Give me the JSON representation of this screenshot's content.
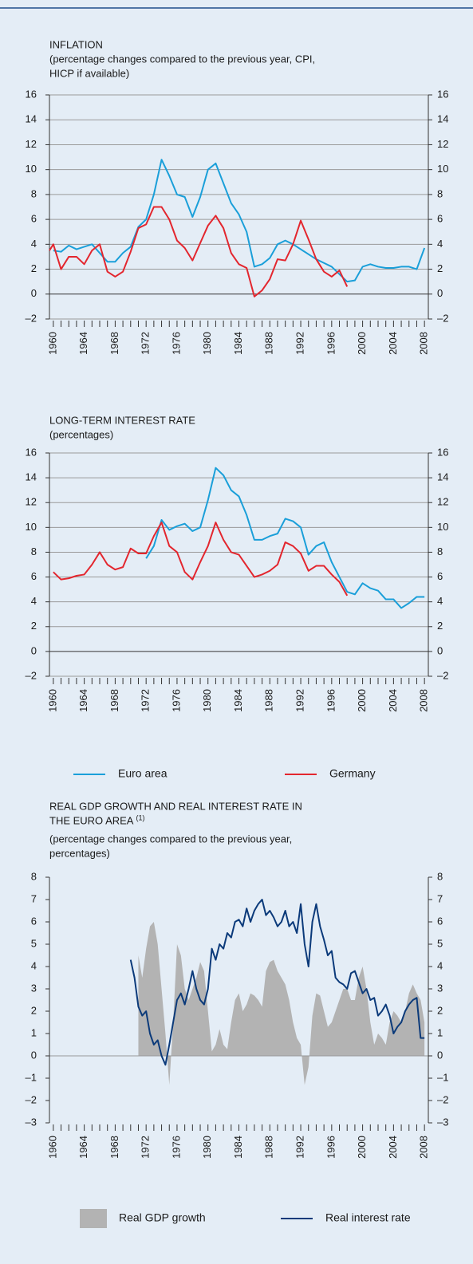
{
  "chart_data": [
    {
      "type": "line",
      "title": [
        "INFLATION"
      ],
      "subtitle": [
        "(percentage changes compared to the previous year, CPI,",
        "HICP if available)"
      ],
      "xlim": [
        1959.5,
        2008.5
      ],
      "xticks": [
        1960,
        1964,
        1968,
        1972,
        1976,
        1980,
        1984,
        1988,
        1992,
        1996,
        2000,
        2004,
        2008
      ],
      "xminorticks": [
        1960,
        1961,
        1962,
        1963,
        1964,
        1965,
        1966,
        1967,
        1968,
        1969,
        1970,
        1971,
        1972,
        1973,
        1974,
        1975,
        1976,
        1977,
        1978,
        1979,
        1980,
        1981,
        1982,
        1983,
        1984,
        1985,
        1986,
        1987,
        1988,
        1989,
        1990,
        1991,
        1992,
        1993,
        1994,
        1995,
        1996,
        1997,
        1998,
        1999,
        2000,
        2001,
        2002,
        2003,
        2004,
        2005,
        2006,
        2007,
        2008
      ],
      "ylim": [
        -2,
        16
      ],
      "yticks": [
        {
          "value": -2,
          "label": "–2"
        },
        0,
        2,
        4,
        6,
        8,
        10,
        12,
        14,
        16
      ],
      "grid": true,
      "series": [
        {
          "color": "#1a9fd9",
          "x": [
            1960,
            1961,
            1962,
            1963,
            1964,
            1965,
            1966,
            1967,
            1968,
            1969,
            1970,
            1971,
            1972,
            1973,
            1974,
            1975,
            1976,
            1977,
            1978,
            1979,
            1980,
            1981,
            1982,
            1983,
            1984,
            1985,
            1986,
            1987,
            1988,
            1989,
            1990,
            1991,
            1992,
            1993,
            1994,
            1995,
            1996,
            1997,
            1998,
            1999,
            2000,
            2001,
            2002,
            2003,
            2004,
            2005,
            2006,
            2007,
            2008
          ],
          "values": [
            3.5,
            3.4,
            3.9,
            3.6,
            3.8,
            4.0,
            3.3,
            2.6,
            2.6,
            3.3,
            3.8,
            5.4,
            6.0,
            8.0,
            10.8,
            9.5,
            8.0,
            7.8,
            6.2,
            7.8,
            10.0,
            10.5,
            8.9,
            7.3,
            6.4,
            5.0,
            2.2,
            2.4,
            2.9,
            4.0,
            4.3,
            4.0,
            3.6,
            3.2,
            2.8,
            2.5,
            2.2,
            1.6,
            1.0,
            1.1,
            2.2,
            2.4,
            2.2,
            2.1,
            2.1,
            2.2,
            2.2,
            2.0,
            3.7
          ]
        },
        {
          "color": "#e3262e",
          "x": [
            1959.5,
            1960,
            1961,
            1962,
            1963,
            1964,
            1965,
            1966,
            1967,
            1968,
            1969,
            1970,
            1971,
            1972,
            1973,
            1974,
            1975,
            1976,
            1977,
            1978,
            1979,
            1980,
            1981,
            1982,
            1983,
            1984,
            1985,
            1986,
            1987,
            1988,
            1989,
            1990,
            1991,
            1992,
            1993,
            1994,
            1995,
            1996,
            1997,
            1998
          ],
          "values": [
            3.5,
            4.0,
            2.0,
            3.0,
            3.0,
            2.4,
            3.5,
            4.0,
            1.8,
            1.4,
            1.8,
            3.4,
            5.3,
            5.6,
            7.0,
            7.0,
            6.0,
            4.3,
            3.7,
            2.7,
            4.1,
            5.5,
            6.3,
            5.3,
            3.3,
            2.4,
            2.1,
            -0.2,
            0.3,
            1.2,
            2.8,
            2.7,
            4.0,
            5.9,
            4.4,
            2.8,
            1.8,
            1.4,
            1.9,
            0.6
          ]
        }
      ]
    },
    {
      "type": "line",
      "title": [
        "LONG-TERM INTEREST RATE"
      ],
      "subtitle": [
        "(percentages)"
      ],
      "xlim": [
        1959.5,
        2008.5
      ],
      "xticks": [
        1960,
        1964,
        1968,
        1972,
        1976,
        1980,
        1984,
        1988,
        1992,
        1996,
        2000,
        2004,
        2008
      ],
      "xminorticks": [
        1960,
        1961,
        1962,
        1963,
        1964,
        1965,
        1966,
        1967,
        1968,
        1969,
        1970,
        1971,
        1972,
        1973,
        1974,
        1975,
        1976,
        1977,
        1978,
        1979,
        1980,
        1981,
        1982,
        1983,
        1984,
        1985,
        1986,
        1987,
        1988,
        1989,
        1990,
        1991,
        1992,
        1993,
        1994,
        1995,
        1996,
        1997,
        1998,
        1999,
        2000,
        2001,
        2002,
        2003,
        2004,
        2005,
        2006,
        2007,
        2008
      ],
      "ylim": [
        -2,
        16
      ],
      "yticks": [
        {
          "value": -2,
          "label": "–2"
        },
        0,
        2,
        4,
        6,
        8,
        10,
        12,
        14,
        16
      ],
      "grid": true,
      "series": [
        {
          "name": "Euro area",
          "color": "#1a9fd9",
          "x": [
            1972,
            1973,
            1974,
            1975,
            1976,
            1977,
            1978,
            1979,
            1980,
            1981,
            1982,
            1983,
            1984,
            1985,
            1986,
            1987,
            1988,
            1989,
            1990,
            1991,
            1992,
            1993,
            1994,
            1995,
            1996,
            1997,
            1998,
            1999,
            2000,
            2001,
            2002,
            2003,
            2004,
            2005,
            2006,
            2007,
            2008
          ],
          "values": [
            7.5,
            8.5,
            10.6,
            9.8,
            10.1,
            10.3,
            9.7,
            10.0,
            12.2,
            14.8,
            14.2,
            13.0,
            12.5,
            11.0,
            9.0,
            9.0,
            9.3,
            9.5,
            10.7,
            10.5,
            10.0,
            7.8,
            8.5,
            8.8,
            7.2,
            6.0,
            4.8,
            4.6,
            5.5,
            5.1,
            4.9,
            4.2,
            4.2,
            3.5,
            3.9,
            4.4,
            4.4
          ]
        },
        {
          "name": "Germany",
          "color": "#e3262e",
          "x": [
            1960,
            1961,
            1962,
            1963,
            1964,
            1965,
            1966,
            1967,
            1968,
            1969,
            1970,
            1971,
            1972,
            1973,
            1974,
            1975,
            1976,
            1977,
            1978,
            1979,
            1980,
            1981,
            1982,
            1983,
            1984,
            1985,
            1986,
            1987,
            1988,
            1989,
            1990,
            1991,
            1992,
            1993,
            1994,
            1995,
            1996,
            1997,
            1998
          ],
          "values": [
            6.4,
            5.8,
            5.9,
            6.1,
            6.2,
            7.0,
            8.0,
            7.0,
            6.6,
            6.8,
            8.3,
            7.9,
            7.9,
            9.3,
            10.4,
            8.5,
            8.0,
            6.4,
            5.8,
            7.2,
            8.5,
            10.4,
            9.0,
            8.0,
            7.8,
            6.9,
            6.0,
            6.2,
            6.5,
            7.0,
            8.8,
            8.5,
            7.9,
            6.5,
            6.9,
            6.9,
            6.2,
            5.6,
            4.5
          ]
        }
      ]
    },
    {
      "type": "line",
      "title": [
        "REAL GDP GROWTH AND REAL INTEREST RATE IN",
        "THE EURO AREA"
      ],
      "title_note": "(1)",
      "subtitle": [
        "(percentage changes compared to the previous year,",
        "percentages)"
      ],
      "xlim": [
        1959.5,
        2008.5
      ],
      "xticks": [
        1960,
        1964,
        1968,
        1972,
        1976,
        1980,
        1984,
        1988,
        1992,
        1996,
        2000,
        2004,
        2008
      ],
      "xminorticks": [
        1960,
        1961,
        1962,
        1963,
        1964,
        1965,
        1966,
        1967,
        1968,
        1969,
        1970,
        1971,
        1972,
        1973,
        1974,
        1975,
        1976,
        1977,
        1978,
        1979,
        1980,
        1981,
        1982,
        1983,
        1984,
        1985,
        1986,
        1987,
        1988,
        1989,
        1990,
        1991,
        1992,
        1993,
        1994,
        1995,
        1996,
        1997,
        1998,
        1999,
        2000,
        2001,
        2002,
        2003,
        2004,
        2005,
        2006,
        2007,
        2008
      ],
      "ylim": [
        -3,
        8
      ],
      "yticks": [
        {
          "value": -3,
          "label": "–3"
        },
        {
          "value": -2,
          "label": "–2"
        },
        {
          "value": -1,
          "label": "–1"
        },
        0,
        1,
        2,
        3,
        4,
        5,
        6,
        7,
        8
      ],
      "grid": false,
      "series": [
        {
          "name": "Real GDP growth",
          "type": "area",
          "color": "#b3b3b3",
          "x": [
            1971,
            1971.5,
            1972,
            1972.5,
            1973,
            1973.5,
            1974,
            1974.5,
            1975,
            1975.5,
            1976,
            1976.5,
            1977,
            1977.5,
            1978,
            1978.5,
            1979,
            1979.5,
            1980,
            1980.5,
            1981,
            1981.5,
            1982,
            1982.5,
            1983,
            1983.5,
            1984,
            1984.5,
            1985,
            1985.5,
            1986,
            1986.5,
            1987,
            1987.5,
            1988,
            1988.5,
            1989,
            1989.5,
            1990,
            1990.5,
            1991,
            1991.5,
            1992,
            1992.5,
            1993,
            1993.5,
            1994,
            1994.5,
            1995,
            1995.5,
            1996,
            1996.5,
            1997,
            1997.5,
            1998,
            1998.5,
            1999,
            1999.5,
            2000,
            2000.5,
            2001,
            2001.5,
            2002,
            2002.5,
            2003,
            2003.5,
            2004,
            2004.5,
            2005,
            2005.5,
            2006,
            2006.5,
            2007,
            2007.5,
            2008
          ],
          "values": [
            4.5,
            3.5,
            4.8,
            5.8,
            6.0,
            5.0,
            3.0,
            1.0,
            -1.3,
            1.5,
            5.0,
            4.5,
            3.0,
            2.5,
            3.0,
            3.5,
            4.2,
            3.8,
            2.0,
            0.2,
            0.5,
            1.2,
            0.5,
            0.3,
            1.5,
            2.5,
            2.8,
            2.0,
            2.3,
            2.8,
            2.7,
            2.5,
            2.2,
            3.8,
            4.2,
            4.3,
            3.8,
            3.5,
            3.2,
            2.5,
            1.5,
            0.8,
            0.5,
            -1.3,
            -0.5,
            1.8,
            2.8,
            2.7,
            2.0,
            1.3,
            1.5,
            2.0,
            2.5,
            3.0,
            3.0,
            2.5,
            2.5,
            3.5,
            4.0,
            3.0,
            1.5,
            0.5,
            1.0,
            0.8,
            0.5,
            1.5,
            2.0,
            1.8,
            1.5,
            2.0,
            2.8,
            3.2,
            2.8,
            2.5,
            1.5
          ]
        },
        {
          "name": "Real interest rate",
          "type": "line",
          "color": "#0b3a7a",
          "x": [
            1970,
            1970.5,
            1971,
            1971.5,
            1972,
            1972.5,
            1973,
            1973.5,
            1974,
            1974.5,
            1975,
            1975.5,
            1976,
            1976.5,
            1977,
            1977.5,
            1978,
            1978.5,
            1979,
            1979.5,
            1980,
            1980.5,
            1981,
            1981.5,
            1982,
            1982.5,
            1983,
            1983.5,
            1984,
            1984.5,
            1985,
            1985.5,
            1986,
            1986.5,
            1987,
            1987.5,
            1988,
            1988.5,
            1989,
            1989.5,
            1990,
            1990.5,
            1991,
            1991.5,
            1992,
            1992.5,
            1993,
            1993.5,
            1994,
            1994.5,
            1995,
            1995.5,
            1996,
            1996.5,
            1997,
            1997.5,
            1998,
            1998.5,
            1999,
            1999.5,
            2000,
            2000.5,
            2001,
            2001.5,
            2002,
            2002.5,
            2003,
            2003.5,
            2004,
            2004.5,
            2005,
            2005.5,
            2006,
            2006.5,
            2007,
            2007.5,
            2008
          ],
          "values": [
            4.3,
            3.5,
            2.2,
            1.8,
            2.0,
            1.0,
            0.5,
            0.7,
            0,
            -0.4,
            0.5,
            1.5,
            2.5,
            2.8,
            2.3,
            3.0,
            3.8,
            3.0,
            2.5,
            2.3,
            3.0,
            4.8,
            4.3,
            5.0,
            4.8,
            5.5,
            5.3,
            6.0,
            6.1,
            5.8,
            6.6,
            6.0,
            6.5,
            6.8,
            7.0,
            6.3,
            6.5,
            6.2,
            5.8,
            6.0,
            6.5,
            5.8,
            6.0,
            5.5,
            6.8,
            5.0,
            4.0,
            6.0,
            6.8,
            5.8,
            5.2,
            4.5,
            4.7,
            3.5,
            3.3,
            3.2,
            3.0,
            3.7,
            3.8,
            3.3,
            2.8,
            3.0,
            2.5,
            2.6,
            1.8,
            2.0,
            2.3,
            1.8,
            1.0,
            1.3,
            1.5,
            2.0,
            2.3,
            2.5,
            2.6,
            0.8,
            0.8
          ]
        }
      ]
    }
  ]
}
